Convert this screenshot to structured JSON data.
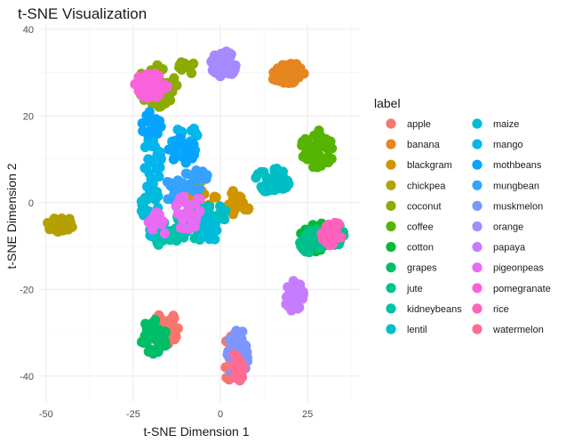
{
  "chart_data": {
    "type": "scatter",
    "title": "t-SNE Visualization",
    "xlabel": "t-SNE Dimension 1",
    "ylabel": "t-SNE Dimension 2",
    "xlim": [
      -52,
      40
    ],
    "ylim": [
      -46,
      41
    ],
    "xticks": [
      -50,
      -25,
      0,
      25
    ],
    "xtick_labels": [
      "-50",
      "-25",
      "0",
      "25"
    ],
    "yticks": [
      -40,
      -20,
      0,
      20,
      40
    ],
    "ytick_labels": [
      "-40",
      "-20",
      "0",
      "20",
      "40"
    ],
    "grid": true,
    "legend_title": "label",
    "legend_position": "right",
    "series": [
      {
        "name": "apple",
        "color": "#F8766D",
        "clusters": [
          [
            -16,
            -29,
            4,
            4,
            50
          ],
          [
            3,
            -36,
            2,
            6,
            30
          ]
        ]
      },
      {
        "name": "banana",
        "color": "#E7851E",
        "clusters": [
          [
            19,
            30,
            5,
            2.5,
            40
          ]
        ]
      },
      {
        "name": "blackgram",
        "color": "#D09400",
        "clusters": [
          [
            -6,
            2,
            5,
            3,
            24
          ],
          [
            5,
            0,
            4,
            3,
            18
          ]
        ]
      },
      {
        "name": "chickpea",
        "color": "#B2A100",
        "clusters": [
          [
            -46,
            -5,
            4,
            1.8,
            40
          ]
        ]
      },
      {
        "name": "coconut",
        "color": "#8BAB00",
        "clusters": [
          [
            -18,
            27,
            6,
            5,
            50
          ],
          [
            -10,
            31,
            3,
            2,
            14
          ]
        ]
      },
      {
        "name": "coffee",
        "color": "#55B400",
        "clusters": [
          [
            28,
            13,
            5,
            5,
            42
          ]
        ]
      },
      {
        "name": "cotton",
        "color": "#00BA38",
        "clusters": [
          [
            27,
            -8,
            4,
            4,
            36
          ]
        ]
      },
      {
        "name": "grapes",
        "color": "#00BE67",
        "clusters": [
          [
            -19,
            -31,
            4,
            4,
            44
          ]
        ]
      },
      {
        "name": "jute",
        "color": "#00C08B",
        "clusters": [
          [
            26,
            -9,
            4,
            3,
            28
          ],
          [
            33,
            -7,
            3,
            3,
            18
          ]
        ]
      },
      {
        "name": "kidneybeans",
        "color": "#00C1A9",
        "clusters": [
          [
            -16,
            -7,
            5,
            3,
            36
          ],
          [
            -8,
            -5,
            5,
            4,
            24
          ]
        ]
      },
      {
        "name": "lentil",
        "color": "#00BFC4",
        "clusters": [
          [
            15,
            5,
            5,
            3,
            38
          ],
          [
            -2,
            -3,
            4,
            3,
            18
          ]
        ]
      },
      {
        "name": "maize",
        "color": "#00BCD8",
        "clusters": [
          [
            -20,
            -2,
            3,
            6,
            32
          ],
          [
            -3,
            -6,
            3,
            3,
            14
          ]
        ]
      },
      {
        "name": "mango",
        "color": "#00B6EB",
        "clusters": [
          [
            -10,
            14,
            4,
            4,
            40
          ],
          [
            -20,
            10,
            3,
            7,
            30
          ]
        ]
      },
      {
        "name": "mothbeans",
        "color": "#06A4FF",
        "clusters": [
          [
            -11,
            12,
            4,
            3,
            24
          ],
          [
            -20,
            18,
            3,
            3,
            18
          ]
        ]
      },
      {
        "name": "mungbean",
        "color": "#35A2FF",
        "clusters": [
          [
            -7,
            5,
            4,
            3,
            24
          ],
          [
            -14,
            3,
            3,
            3,
            14
          ]
        ]
      },
      {
        "name": "muskmelon",
        "color": "#7C96FF",
        "clusters": [
          [
            5,
            -35,
            3,
            6,
            50
          ]
        ]
      },
      {
        "name": "orange",
        "color": "#A58AFF",
        "clusters": [
          [
            1,
            32,
            4,
            3,
            44
          ]
        ]
      },
      {
        "name": "papaya",
        "color": "#C77CFF",
        "clusters": [
          [
            21,
            -21,
            3,
            4,
            36
          ]
        ]
      },
      {
        "name": "pigeonpeas",
        "color": "#E76BF3",
        "clusters": [
          [
            -9,
            -2,
            4,
            5,
            22
          ],
          [
            -18,
            -5,
            3,
            3,
            14
          ]
        ]
      },
      {
        "name": "pomegranate",
        "color": "#FA62DB",
        "clusters": [
          [
            -20,
            27,
            5,
            3,
            40
          ]
        ]
      },
      {
        "name": "rice",
        "color": "#FF62BC",
        "clusters": [
          [
            32,
            -7,
            3,
            3,
            26
          ]
        ]
      },
      {
        "name": "watermelon",
        "color": "#FF6C91",
        "clusters": [
          [
            5,
            -38,
            2,
            4,
            28
          ]
        ]
      }
    ]
  }
}
